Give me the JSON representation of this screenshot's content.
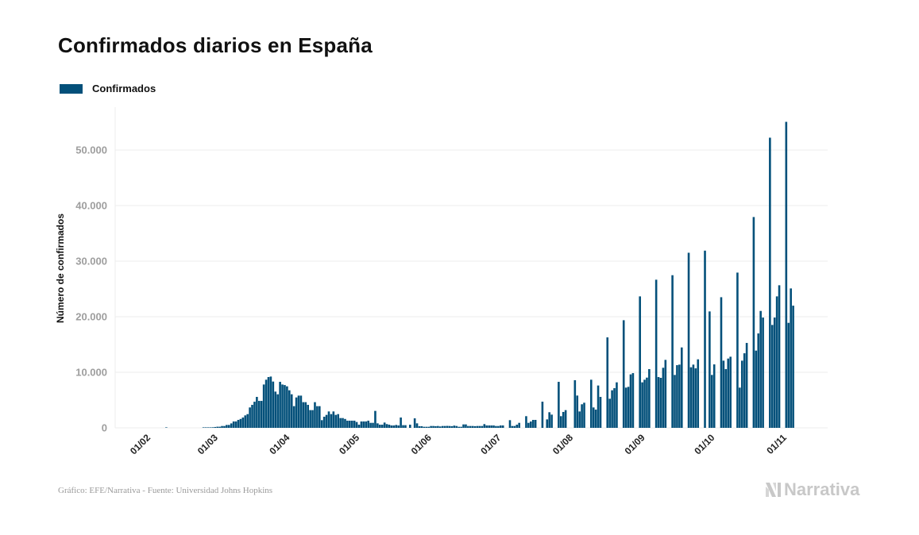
{
  "title": "Confirmados diarios en España",
  "source": "Gráfico: EFE/Narrativa - Fuente: Universidad Johns Hopkins",
  "brand": "Narrativa",
  "colors": {
    "bar": "#03507a",
    "grid": "#ececec",
    "tick_text": "#9e9e9e",
    "text": "#111111"
  },
  "chart_data": {
    "type": "bar",
    "title": "Confirmados diarios en España",
    "ylabel": "Número de confirmados",
    "xlabel": "",
    "ylim": [
      0,
      57000
    ],
    "grid": true,
    "legend_placement": "top-left",
    "series": [
      {
        "name": "Confirmados"
      }
    ],
    "y_ticks": [
      {
        "value": 0,
        "label": "0"
      },
      {
        "value": 10000,
        "label": "10.000"
      },
      {
        "value": 20000,
        "label": "20.000"
      },
      {
        "value": 30000,
        "label": "30.000"
      },
      {
        "value": 40000,
        "label": "40.000"
      },
      {
        "value": 50000,
        "label": "50.000"
      }
    ],
    "x_ticks": [
      {
        "date": "2020-02-01",
        "label": "01/02"
      },
      {
        "date": "2020-03-01",
        "label": "01/03"
      },
      {
        "date": "2020-04-01",
        "label": "01/04"
      },
      {
        "date": "2020-05-01",
        "label": "01/05"
      },
      {
        "date": "2020-06-01",
        "label": "01/06"
      },
      {
        "date": "2020-07-01",
        "label": "01/07"
      },
      {
        "date": "2020-08-01",
        "label": "01/08"
      },
      {
        "date": "2020-09-01",
        "label": "01/09"
      },
      {
        "date": "2020-10-01",
        "label": "01/10"
      },
      {
        "date": "2020-11-01",
        "label": "01/11"
      }
    ],
    "daily_values_by_month": [
      {
        "month": "2020-02",
        "values": [
          0,
          0,
          0,
          0,
          0,
          0,
          0,
          0,
          1,
          0,
          0,
          0,
          0,
          0,
          0,
          0,
          0,
          0,
          0,
          0,
          0,
          0,
          0,
          0,
          10,
          20,
          30,
          60,
          100
        ]
      },
      {
        "month": "2020-03",
        "values": [
          150,
          200,
          200,
          330,
          330,
          520,
          520,
          800,
          1150,
          1150,
          1430,
          1600,
          1860,
          2240,
          2470,
          3670,
          4140,
          4700,
          5570,
          4850,
          4850,
          7800,
          8660,
          9140,
          9230,
          8330,
          6520,
          6040,
          8280,
          7800,
          7700
        ]
      },
      {
        "month": "2020-04",
        "values": [
          7470,
          6760,
          6040,
          3900,
          5470,
          5800,
          5800,
          4620,
          4620,
          4140,
          3190,
          3190,
          4620,
          3900,
          3900,
          1380,
          2000,
          2330,
          2950,
          2470,
          2950,
          2330,
          2470,
          1760,
          1760,
          1600,
          1290,
          1290,
          1290,
          1290
        ]
      },
      {
        "month": "2020-05",
        "values": [
          1050,
          570,
          1150,
          1150,
          1150,
          1290,
          900,
          900,
          3050,
          810,
          570,
          570,
          950,
          670,
          570,
          430,
          430,
          520,
          430,
          1860,
          480,
          480,
          0,
          570,
          0,
          1710,
          810,
          290,
          290,
          190,
          190
        ]
      },
      {
        "month": "2020-06",
        "values": [
          190,
          330,
          330,
          300,
          330,
          250,
          330,
          330,
          350,
          330,
          300,
          400,
          330,
          190,
          190,
          620,
          620,
          330,
          330,
          330,
          300,
          330,
          330,
          330,
          670,
          430,
          430,
          430,
          430,
          330
        ]
      },
      {
        "month": "2020-07",
        "values": [
          330,
          430,
          430,
          0,
          0,
          1380,
          330,
          330,
          570,
          900,
          0,
          0,
          2100,
          900,
          1140,
          1430,
          1430,
          0,
          0,
          4710,
          0,
          1520,
          2810,
          2380,
          0,
          0,
          8280,
          2100,
          2860,
          3190,
          0
        ]
      },
      {
        "month": "2020-08",
        "values": [
          0,
          0,
          8570,
          5810,
          2950,
          4240,
          4520,
          0,
          0,
          8660,
          3670,
          3280,
          7620,
          5570,
          0,
          0,
          16280,
          5240,
          6760,
          7140,
          8190,
          0,
          0,
          19370,
          7240,
          7380,
          9620,
          9850,
          0,
          0,
          23660
        ]
      },
      {
        "month": "2020-09",
        "values": [
          8190,
          8660,
          9040,
          10570,
          0,
          0,
          26660,
          9140,
          9000,
          10810,
          12230,
          0,
          0,
          27470,
          9520,
          11280,
          11380,
          14470,
          0,
          0,
          31510,
          10900,
          11380,
          10710,
          12330,
          0,
          0,
          31890,
          0,
          20950
        ]
      },
      {
        "month": "2020-10",
        "values": [
          9520,
          11420,
          0,
          0,
          23510,
          12090,
          10570,
          12470,
          12800,
          0,
          0,
          27940,
          7240,
          12090,
          13420,
          15280,
          0,
          0,
          37940,
          13900,
          16990,
          21040,
          19850,
          0,
          0,
          52220,
          18520,
          19850,
          23660,
          25660,
          0
        ]
      },
      {
        "month": "2020-11",
        "values": [
          0,
          55070,
          18900,
          25090,
          21990
        ]
      }
    ]
  }
}
